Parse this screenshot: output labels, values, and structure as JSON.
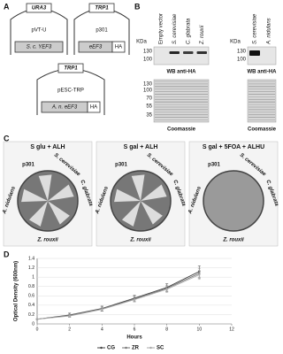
{
  "figure": {
    "panel_letters": [
      "A",
      "B",
      "C",
      "D"
    ]
  },
  "panel_a": {
    "plasmids": [
      {
        "marker": "URA3",
        "name": "pVT-U",
        "insert": "S. c. YEF3"
      },
      {
        "marker": "TRP1",
        "name": "p301",
        "insert": "eEF3",
        "tag": "HA"
      },
      {
        "marker": "TRP1",
        "name": "pESC-TRP",
        "insert": "A. n. eEF3",
        "tag": "HA"
      }
    ]
  },
  "panel_b": {
    "blots": [
      {
        "unit": "KDa",
        "lanes": [
          "Empty vector",
          "S. cerevisiae",
          "C. glabrata",
          "Z. rouxii"
        ],
        "wb_markers": [
          130,
          100
        ],
        "wb_label": "WB anti-HA",
        "gel_markers": [
          130,
          100,
          70,
          55,
          35
        ],
        "gel_label": "Coomassie"
      },
      {
        "unit": "KDa",
        "lanes": [
          "S. cerevisiae",
          "A. nidulans"
        ],
        "wb_markers": [
          130,
          100
        ],
        "wb_label": "WB anti-HA",
        "gel_label": "Coomassie"
      }
    ]
  },
  "panel_c": {
    "plates": [
      {
        "condition": "S glu + ALH",
        "strains": [
          "p301",
          "S. cerevisiae",
          "C. glabrata",
          "Z. rouxii",
          "A. nidulans"
        ]
      },
      {
        "condition": "S gal + ALH",
        "strains": [
          "p301",
          "S. cerevisiae",
          "C. glabrata",
          "Z. rouxii",
          "A. nidulans"
        ]
      },
      {
        "condition": "S gal + 5FOA + ALHU",
        "strains": [
          "p301",
          "S. cerevisiae",
          "C. glabrata",
          "Z. rouxii",
          "A. nidulans"
        ]
      }
    ]
  },
  "chart_data": {
    "type": "line",
    "x_label": "Hours",
    "y_label": "Optical Density (600nm)",
    "x": [
      0,
      2,
      4,
      6,
      8,
      10
    ],
    "series": [
      {
        "name": "CG",
        "color": "#444444",
        "values": [
          0.1,
          0.19,
          0.33,
          0.55,
          0.78,
          1.12
        ],
        "errors": [
          0.01,
          0.04,
          0.05,
          0.06,
          0.08,
          0.12
        ]
      },
      {
        "name": "ZR",
        "color": "#777777",
        "values": [
          0.1,
          0.18,
          0.32,
          0.53,
          0.76,
          1.08
        ],
        "errors": [
          0.01,
          0.03,
          0.05,
          0.06,
          0.07,
          0.11
        ]
      },
      {
        "name": "SC",
        "color": "#aaaaaa",
        "values": [
          0.1,
          0.17,
          0.31,
          0.52,
          0.74,
          1.05
        ],
        "errors": [
          0.01,
          0.03,
          0.04,
          0.05,
          0.07,
          0.1
        ]
      }
    ],
    "xlim": [
      0,
      12
    ],
    "xticks": [
      0,
      2,
      4,
      6,
      8,
      10,
      12
    ],
    "ylim": [
      0,
      1.4
    ],
    "yticks": [
      0,
      0.2,
      0.4,
      0.6,
      0.8,
      1,
      1.2,
      1.4
    ],
    "legend": "bottom"
  }
}
